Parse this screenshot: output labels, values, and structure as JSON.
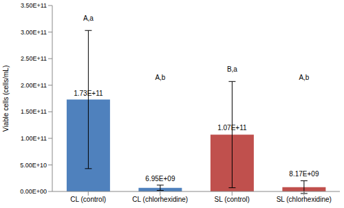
{
  "chart_data": {
    "type": "bar",
    "categories": [
      "CL (control)",
      "CL (chlorhexidine)",
      "SL (control)",
      "SL (chlorhexidine)"
    ],
    "values": [
      173000000000,
      6950000000,
      107000000000,
      8170000000
    ],
    "value_labels": [
      "1.73E+11",
      "6.95E+09",
      "1.07E+11",
      "8.17E+09"
    ],
    "errors": [
      130000000000,
      5000000000,
      100000000000,
      12000000000
    ],
    "annotations": [
      "A,a",
      "A,b",
      "B,a",
      "A,b"
    ],
    "colors": [
      "#4f81bd",
      "#4f81bd",
      "#c0504d",
      "#c0504d"
    ],
    "y_label": "Viable cells (cells/mL)",
    "ylim": [
      0,
      350000000000
    ],
    "yticks": [
      {
        "value": 0,
        "label": "0.00E+00"
      },
      {
        "value": 50000000000,
        "label": "5.00E+10"
      },
      {
        "value": 100000000000,
        "label": "1.00E+11"
      },
      {
        "value": 150000000000,
        "label": "1.50E+11"
      },
      {
        "value": 200000000000,
        "label": "2.00E+11"
      },
      {
        "value": 250000000000,
        "label": "2.50E+11"
      },
      {
        "value": 300000000000,
        "label": "3.00E+11"
      },
      {
        "value": 350000000000,
        "label": "3.50E+11"
      }
    ],
    "data_labels": true,
    "grid": false
  }
}
